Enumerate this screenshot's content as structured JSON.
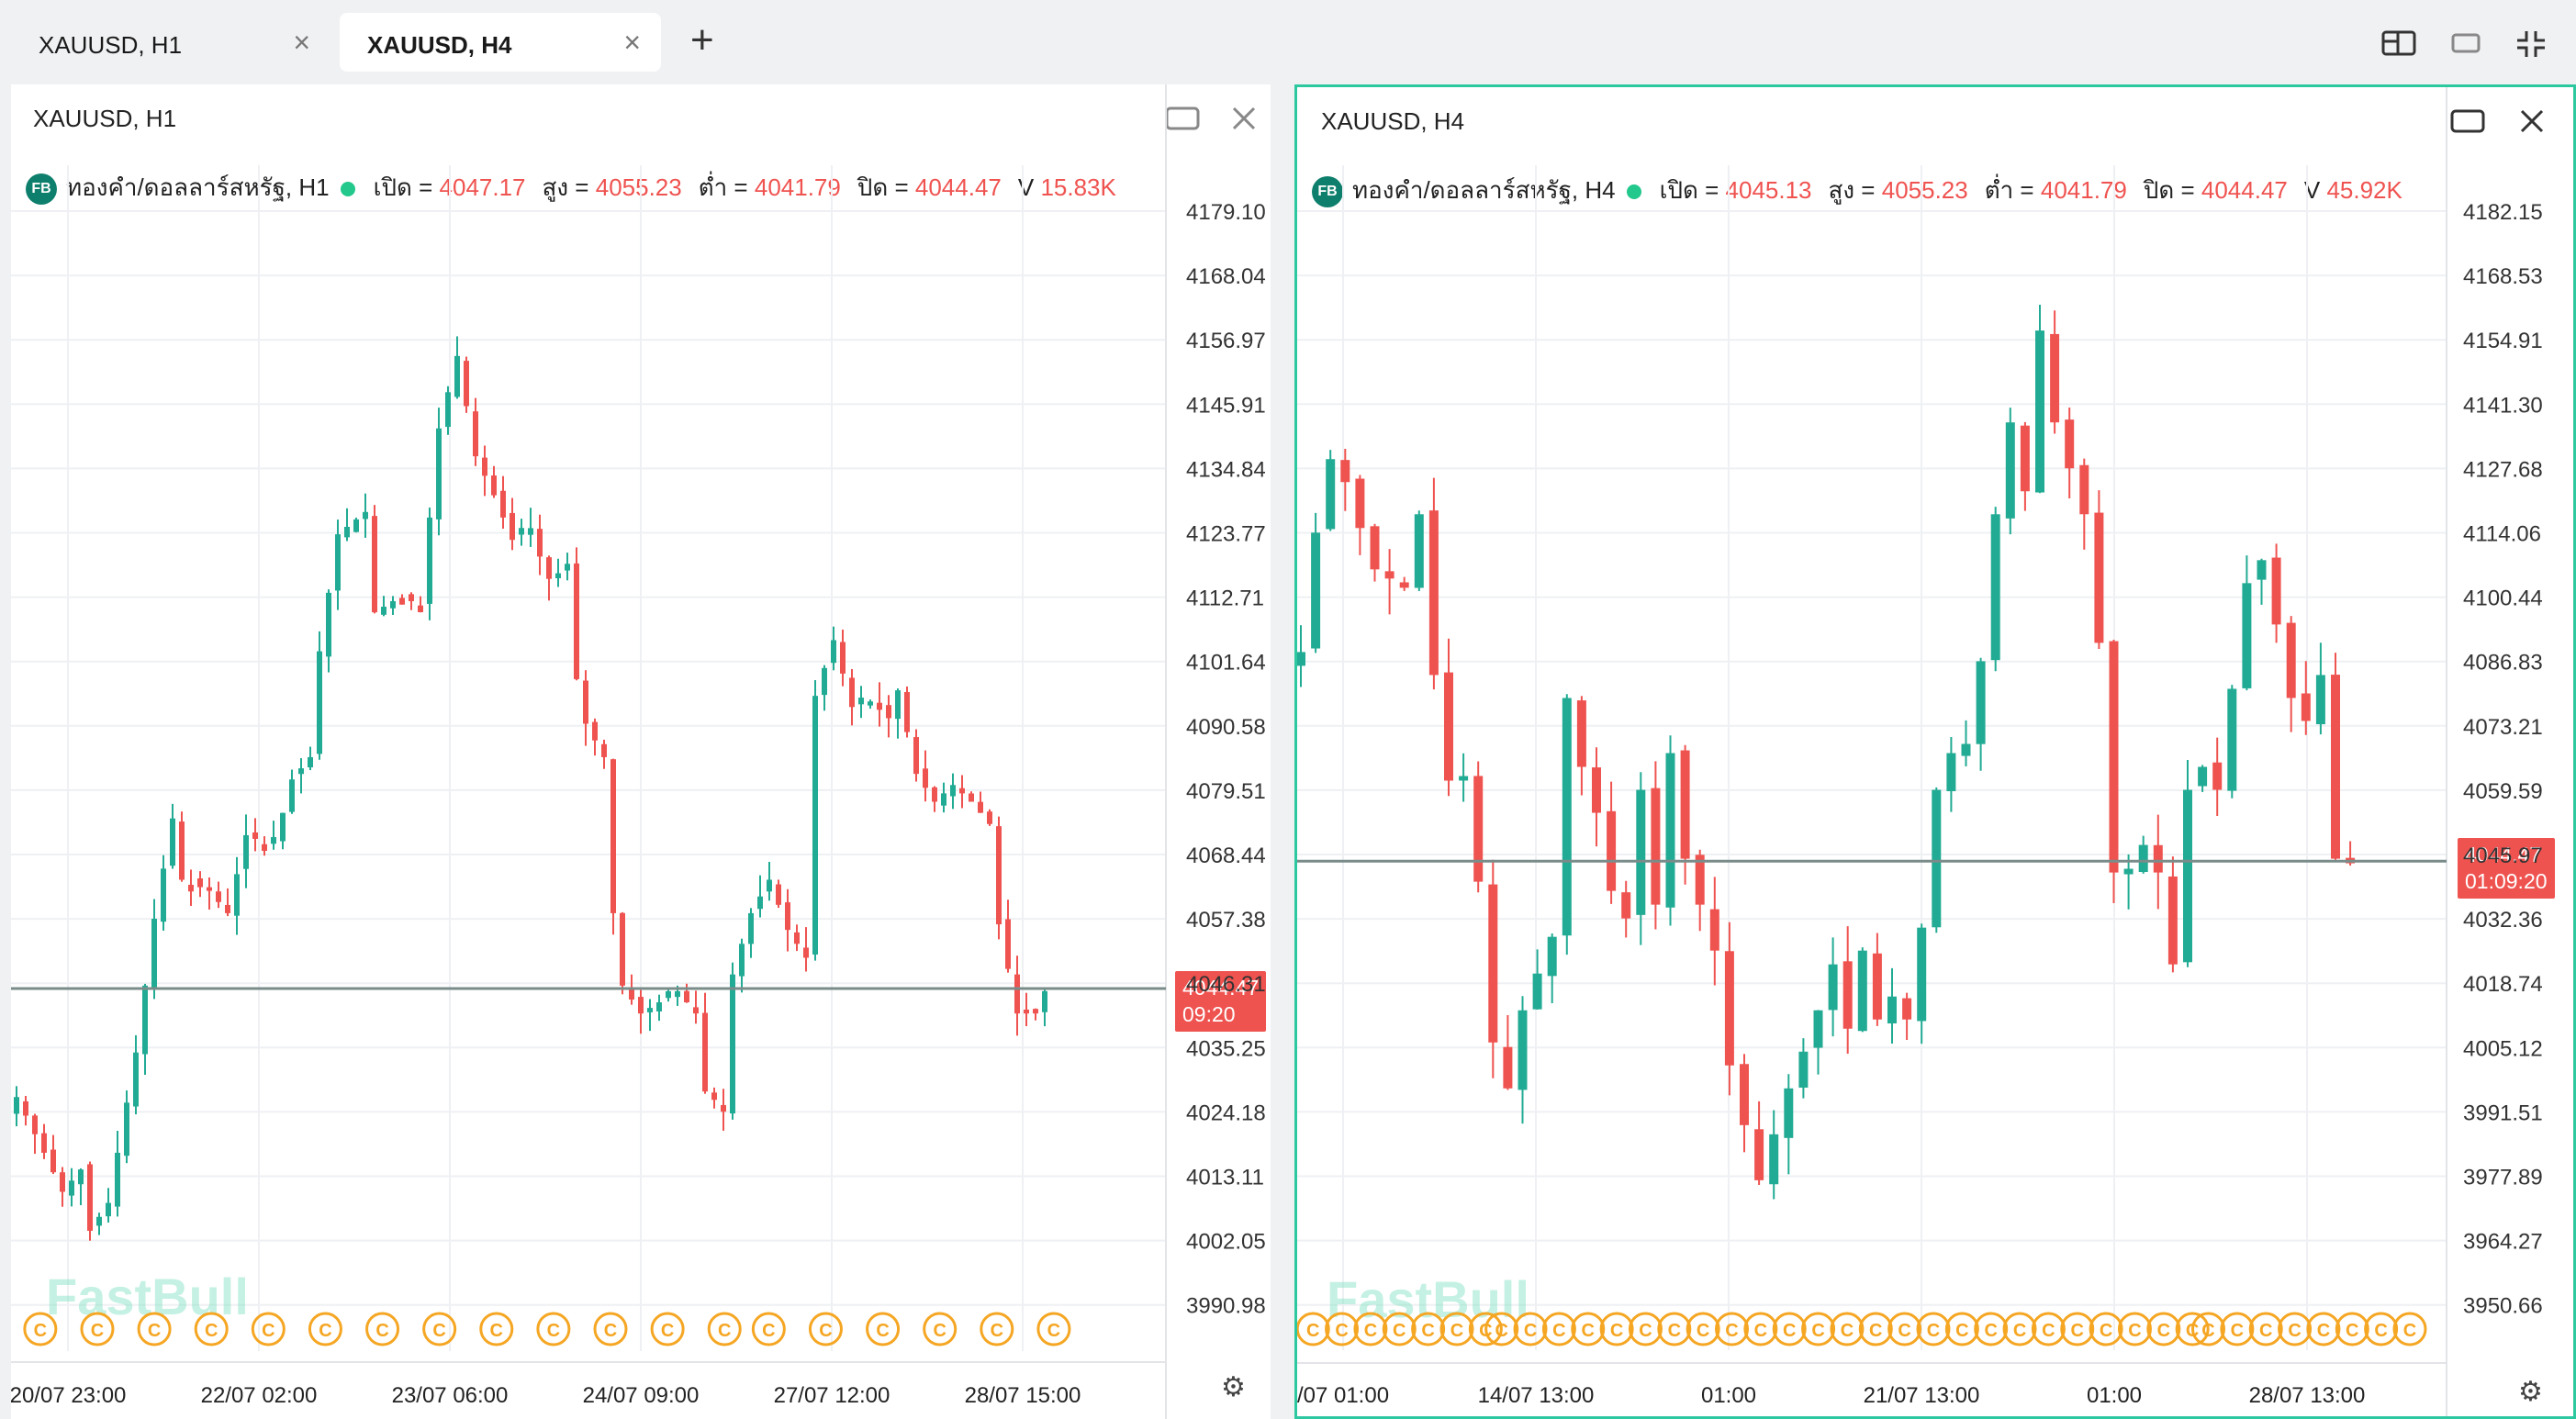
{
  "tabs": [
    {
      "label": "XAUUSD, H1",
      "close": "×",
      "active": false
    },
    {
      "label": "XAUUSD, H4",
      "close": "×",
      "active": true
    }
  ],
  "tab_add": "+",
  "top_icons": [
    "layout-icon",
    "window-icon",
    "collapse-icon"
  ],
  "panels": {
    "left": {
      "title": "XAUUSD, H1",
      "legend": {
        "badge": "FB",
        "symbol": "ทองคำ/ดอลลาร์สหรัฐ, H1",
        "open_label": "เปิด =",
        "open": "4047.17",
        "high_label": "สูง =",
        "high": "4055.23",
        "low_label": "ต่ำ =",
        "low": "4041.79",
        "close_label": "ปิด =",
        "close": "4044.47",
        "vol_label": "V",
        "vol": "15.83K"
      },
      "price_tag": {
        "price": "4044.47",
        "time": "09:20"
      },
      "watermark": "FastBull"
    },
    "right": {
      "title": "XAUUSD, H4",
      "legend": {
        "badge": "FB",
        "symbol": "ทองคำ/ดอลลาร์สหรัฐ, H4",
        "open_label": "เปิด =",
        "open": "4045.13",
        "high_label": "สูง =",
        "high": "4055.23",
        "low_label": "ต่ำ =",
        "low": "4041.79",
        "close_label": "ปิด =",
        "close": "4044.47",
        "vol_label": "V",
        "vol": "45.92K"
      },
      "price_tag": {
        "price": "4044.47",
        "time": "01:09:20"
      },
      "watermark": "FastBull"
    }
  },
  "colors": {
    "up": "#22ab94",
    "down": "#ef5350",
    "accent": "#2ec8a0",
    "event": "#f5a623"
  },
  "chart_data": [
    {
      "type": "candlestick",
      "title": "XAUUSD, H1",
      "y_ticks": [
        "4179.10",
        "4168.04",
        "4156.97",
        "4145.91",
        "4134.84",
        "4123.77",
        "4112.71",
        "4101.64",
        "4090.58",
        "4079.51",
        "4068.44",
        "4057.38",
        "4046.31",
        "4035.25",
        "4024.18",
        "4013.11",
        "4002.05",
        "3990.98"
      ],
      "ylim": [
        3986,
        4184
      ],
      "x_ticks": [
        "20/07 23:00",
        "22/07 02:00",
        "23/07 06:00",
        "24/07 09:00",
        "27/07 12:00",
        "28/07 15:00"
      ],
      "last_price": 4044.47,
      "events": 19,
      "waypoints": [
        [
          0,
          4025
        ],
        [
          3,
          4015
        ],
        [
          5,
          4008
        ],
        [
          7,
          4012
        ],
        [
          8,
          4001
        ],
        [
          10,
          4006
        ],
        [
          13,
          4033
        ],
        [
          15,
          4057
        ],
        [
          17,
          4075
        ],
        [
          18,
          4064
        ],
        [
          21,
          4062
        ],
        [
          23,
          4058
        ],
        [
          25,
          4072
        ],
        [
          28,
          4070
        ],
        [
          30,
          4082
        ],
        [
          32,
          4086
        ],
        [
          33,
          4105
        ],
        [
          35,
          4126
        ],
        [
          38,
          4130
        ],
        [
          39,
          4112
        ],
        [
          42,
          4115
        ],
        [
          44,
          4113
        ],
        [
          46,
          4145
        ],
        [
          48,
          4158
        ],
        [
          50,
          4140
        ],
        [
          52,
          4133
        ],
        [
          54,
          4125
        ],
        [
          56,
          4126
        ],
        [
          58,
          4118
        ],
        [
          60,
          4120
        ],
        [
          61,
          4100
        ],
        [
          62,
          4092
        ],
        [
          64,
          4086
        ],
        [
          65,
          4058
        ],
        [
          66,
          4045
        ],
        [
          68,
          4040
        ],
        [
          70,
          4042
        ],
        [
          72,
          4044
        ],
        [
          74,
          4040
        ],
        [
          75,
          4026
        ],
        [
          77,
          4023
        ],
        [
          78,
          4047
        ],
        [
          80,
          4058
        ],
        [
          82,
          4064
        ],
        [
          84,
          4055
        ],
        [
          86,
          4050
        ],
        [
          87,
          4097
        ],
        [
          89,
          4107
        ],
        [
          91,
          4095
        ],
        [
          93,
          4096
        ],
        [
          95,
          4093
        ],
        [
          96,
          4098
        ],
        [
          98,
          4083
        ],
        [
          100,
          4078
        ],
        [
          102,
          4081
        ],
        [
          104,
          4078
        ],
        [
          106,
          4074
        ],
        [
          107,
          4056
        ],
        [
          109,
          4040
        ],
        [
          111,
          4040
        ],
        [
          112,
          4044
        ]
      ]
    },
    {
      "type": "candlestick",
      "title": "XAUUSD, H4",
      "y_ticks": [
        "4182.15",
        "4168.53",
        "4154.91",
        "4141.30",
        "4127.68",
        "4114.06",
        "4100.44",
        "4086.83",
        "4073.21",
        "4059.59",
        "4045.97",
        "4032.36",
        "4018.74",
        "4005.12",
        "3991.51",
        "3977.89",
        "3964.27",
        "3950.66"
      ],
      "ylim": [
        3946,
        4186
      ],
      "x_ticks": [
        "/07 01:00",
        "14/07 13:00",
        "01:00",
        "21/07 13:00",
        "01:00",
        "28/07 13:00"
      ],
      "last_price": 4044.47,
      "events": 40,
      "waypoints": [
        [
          0,
          4090
        ],
        [
          1,
          4116
        ],
        [
          2,
          4132
        ],
        [
          3,
          4127
        ],
        [
          4,
          4117
        ],
        [
          5,
          4108
        ],
        [
          6,
          4106
        ],
        [
          7,
          4104
        ],
        [
          8,
          4120
        ],
        [
          9,
          4085
        ],
        [
          10,
          4062
        ],
        [
          11,
          4063
        ],
        [
          12,
          4040
        ],
        [
          13,
          4005
        ],
        [
          14,
          3995
        ],
        [
          15,
          4012
        ],
        [
          16,
          4020
        ],
        [
          17,
          4028
        ],
        [
          18,
          4080
        ],
        [
          19,
          4065
        ],
        [
          20,
          4055
        ],
        [
          21,
          4038
        ],
        [
          22,
          4032
        ],
        [
          23,
          4060
        ],
        [
          24,
          4035
        ],
        [
          25,
          4068
        ],
        [
          26,
          4045
        ],
        [
          27,
          4035
        ],
        [
          28,
          4025
        ],
        [
          29,
          4000
        ],
        [
          30,
          3987
        ],
        [
          31,
          3975
        ],
        [
          32,
          3985
        ],
        [
          33,
          3995
        ],
        [
          34,
          4003
        ],
        [
          35,
          4012
        ],
        [
          36,
          4022
        ],
        [
          37,
          4008
        ],
        [
          38,
          4025
        ],
        [
          39,
          4010
        ],
        [
          40,
          4015
        ],
        [
          41,
          4010
        ],
        [
          42,
          4030
        ],
        [
          43,
          4060
        ],
        [
          44,
          4068
        ],
        [
          45,
          4070
        ],
        [
          46,
          4088
        ],
        [
          47,
          4120
        ],
        [
          48,
          4140
        ],
        [
          49,
          4125
        ],
        [
          50,
          4160
        ],
        [
          51,
          4140
        ],
        [
          52,
          4130
        ],
        [
          53,
          4120
        ],
        [
          54,
          4092
        ],
        [
          55,
          4042
        ],
        [
          56,
          4042
        ],
        [
          57,
          4048
        ],
        [
          58,
          4042
        ],
        [
          59,
          4022
        ],
        [
          60,
          4060
        ],
        [
          61,
          4065
        ],
        [
          62,
          4060
        ],
        [
          63,
          4082
        ],
        [
          64,
          4105
        ],
        [
          65,
          4110
        ],
        [
          66,
          4096
        ],
        [
          67,
          4080
        ],
        [
          68,
          4075
        ],
        [
          69,
          4085
        ],
        [
          70,
          4045
        ],
        [
          71,
          4044
        ]
      ]
    }
  ]
}
